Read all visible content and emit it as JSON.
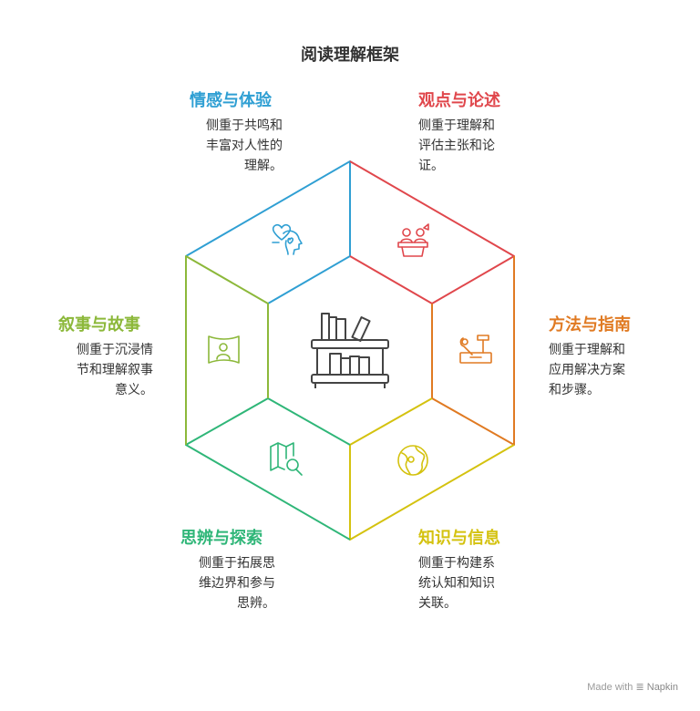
{
  "title": "阅读理解框架",
  "sections": {
    "emotion": {
      "title": "情感与体验",
      "lines": [
        "侧重于共鸣和",
        "丰富对人性的",
        "理解。"
      ],
      "color": "#2f9fd3",
      "icon": "heart-head-icon"
    },
    "viewpoint": {
      "title": "观点与论述",
      "lines": [
        "侧重于理解和",
        "评估主张和论",
        "证。"
      ],
      "color": "#e0474c",
      "icon": "debate-podium-icon"
    },
    "method": {
      "title": "方法与指南",
      "lines": [
        "侧重于理解和",
        "应用解决方案",
        "和步骤。"
      ],
      "color": "#e07a22",
      "icon": "toolbox-icon"
    },
    "knowledge": {
      "title": "知识与信息",
      "lines": [
        "侧重于构建系",
        "统认知和知识",
        "关联。"
      ],
      "color": "#d4c20f",
      "icon": "globe-icon"
    },
    "inquiry": {
      "title": "思辨与探索",
      "lines": [
        "侧重于拓展思",
        "维边界和参与",
        "思辨。"
      ],
      "color": "#2fb678",
      "icon": "map-search-icon"
    },
    "narrative": {
      "title": "叙事与故事",
      "lines": [
        "侧重于沉浸情",
        "节和理解叙事",
        "意义。"
      ],
      "color": "#8cb83a",
      "icon": "panorama-person-icon"
    }
  },
  "center_icon": "bookshelf-icon",
  "watermark": {
    "prefix": "Made with",
    "brand": "Napkin"
  }
}
